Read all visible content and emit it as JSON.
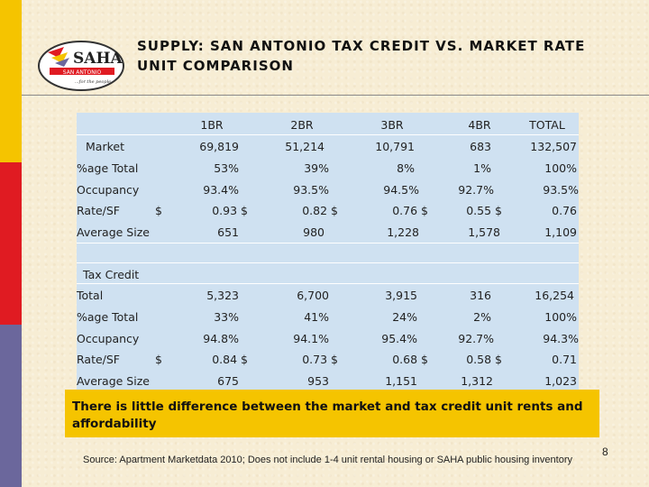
{
  "title_line1": "SUPPLY: SAN ANTONIO TAX CREDIT VS. MARKET RATE",
  "title_line2": "UNIT COMPARISON",
  "logo": {
    "text": "SAHA",
    "sub": "SAN ANTONIO",
    "tag": "...for the people"
  },
  "colors": {
    "band_top": "#f5c400",
    "band_mid": "#e01b22",
    "band_bottom": "#6b679c",
    "table_bg": "#cfe1f1",
    "callout_bg": "#f5c400"
  },
  "headers": [
    "1BR",
    "2BR",
    "3BR",
    "4BR",
    "TOTAL"
  ],
  "market": {
    "label": "Market",
    "total": [
      "69,819",
      "51,214",
      "10,791",
      "683",
      "132,507"
    ],
    "pct_label": "%age Total",
    "pct": [
      "53%",
      "39%",
      "8%",
      "1%",
      "100%"
    ],
    "occ_label": "Occupancy",
    "occ": [
      "93.4%",
      "93.5%",
      "94.5%",
      "92.7%",
      "93.5%"
    ],
    "rate_label": "Rate/SF",
    "rate": [
      "$",
      "0.93 $",
      "0.82 $",
      "0.76 $",
      "0.55 $",
      "0.76"
    ],
    "size_label": "Average Size",
    "size": [
      "651",
      "980",
      "1,228",
      "1,578",
      "1,109"
    ]
  },
  "taxcredit": {
    "label": "Tax Credit",
    "total_label": "Total",
    "total": [
      "5,323",
      "6,700",
      "3,915",
      "316",
      "16,254"
    ],
    "pct_label": "%age Total",
    "pct": [
      "33%",
      "41%",
      "24%",
      "2%",
      "100%"
    ],
    "occ_label": "Occupancy",
    "occ": [
      "94.8%",
      "94.1%",
      "95.4%",
      "92.7%",
      "94.3%"
    ],
    "rate_label": "Rate/SF",
    "rate": [
      "$",
      "0.84 $",
      "0.73 $",
      "0.68 $",
      "0.58 $",
      "0.71"
    ],
    "size_label": "Average Size",
    "size": [
      "675",
      "953",
      "1,151",
      "1,312",
      "1,023"
    ]
  },
  "callout": "There is little difference between the market and tax credit unit rents and affordability",
  "source": "Source: Apartment Marketdata 2010; Does not include 1-4 unit rental housing or SAHA public housing inventory",
  "page_number": "8"
}
